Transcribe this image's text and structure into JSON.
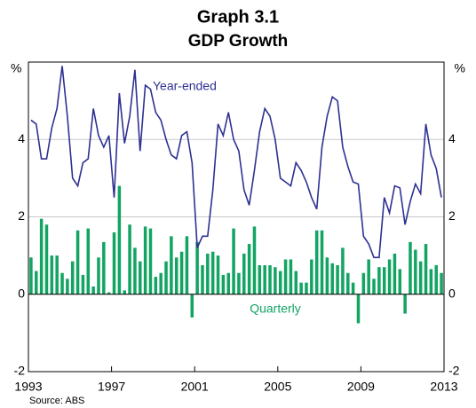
{
  "chart_data": {
    "type": "combo",
    "title": "Graph 3.1",
    "subtitle": "GDP Growth",
    "unit": "%",
    "source": "Source: ABS",
    "xlim": [
      1993,
      2013
    ],
    "xticks": [
      1993,
      1997,
      2001,
      2005,
      2009,
      2013
    ],
    "ylim": [
      -2,
      6
    ],
    "yticks": [
      -2,
      0,
      2,
      4
    ],
    "grid": true,
    "x": [
      1993,
      1993.25,
      1993.5,
      1993.75,
      1994,
      1994.25,
      1994.5,
      1994.75,
      1995,
      1995.25,
      1995.5,
      1995.75,
      1996,
      1996.25,
      1996.5,
      1996.75,
      1997,
      1997.25,
      1997.5,
      1997.75,
      1998,
      1998.25,
      1998.5,
      1998.75,
      1999,
      1999.25,
      1999.5,
      1999.75,
      2000,
      2000.25,
      2000.5,
      2000.75,
      2001,
      2001.25,
      2001.5,
      2001.75,
      2002,
      2002.25,
      2002.5,
      2002.75,
      2003,
      2003.25,
      2003.5,
      2003.75,
      2004,
      2004.25,
      2004.5,
      2004.75,
      2005,
      2005.25,
      2005.5,
      2005.75,
      2006,
      2006.25,
      2006.5,
      2006.75,
      2007,
      2007.25,
      2007.5,
      2007.75,
      2008,
      2008.25,
      2008.5,
      2008.75,
      2009,
      2009.25,
      2009.5,
      2009.75,
      2010,
      2010.25,
      2010.5,
      2010.75,
      2011,
      2011.25,
      2011.5,
      2011.75,
      2012,
      2012.25,
      2012.5,
      2012.75
    ],
    "series": [
      {
        "name": "Year-ended",
        "type": "line",
        "color": "#2e3192",
        "values": [
          4.5,
          4.4,
          3.5,
          3.5,
          4.3,
          4.8,
          5.9,
          4.6,
          3.0,
          2.8,
          3.4,
          3.5,
          4.8,
          4.1,
          3.8,
          4.1,
          2.5,
          5.2,
          3.9,
          4.6,
          5.8,
          3.7,
          5.4,
          5.3,
          4.7,
          4.5,
          4.0,
          3.6,
          3.5,
          4.1,
          4.2,
          3.4,
          1.2,
          1.5,
          1.5,
          2.7,
          4.4,
          4.1,
          4.7,
          4.0,
          3.7,
          2.7,
          2.3,
          3.2,
          4.2,
          4.8,
          4.6,
          4.0,
          3.0,
          2.9,
          2.8,
          3.4,
          3.2,
          2.9,
          2.5,
          2.2,
          3.8,
          4.6,
          5.1,
          5.0,
          3.8,
          3.3,
          2.9,
          2.85,
          1.5,
          1.3,
          0.95,
          0.95,
          2.5,
          2.1,
          2.8,
          2.75,
          1.8,
          2.4,
          2.85,
          2.6,
          4.4,
          3.6,
          3.25,
          2.5
        ]
      },
      {
        "name": "Quarterly",
        "type": "bar",
        "color": "#13a463",
        "values": [
          0.95,
          0.6,
          1.95,
          1.8,
          1.0,
          1.0,
          0.55,
          0.4,
          0.85,
          1.65,
          0.5,
          1.7,
          0.2,
          0.95,
          1.35,
          0.05,
          1.6,
          2.8,
          0.1,
          1.8,
          1.2,
          0.85,
          1.75,
          1.7,
          0.45,
          0.55,
          0.85,
          1.5,
          0.95,
          1.1,
          1.5,
          -0.6,
          1.35,
          0.75,
          1.05,
          1.1,
          1.0,
          0.5,
          0.55,
          1.7,
          0.55,
          1.05,
          1.3,
          1.75,
          0.75,
          0.75,
          0.75,
          0.7,
          0.6,
          0.9,
          0.9,
          0.6,
          0.3,
          0.3,
          0.9,
          1.65,
          1.65,
          0.95,
          0.8,
          0.75,
          1.2,
          0.55,
          0.3,
          -0.75,
          0.55,
          0.9,
          0.4,
          0.7,
          0.7,
          0.9,
          1.05,
          0.65,
          -0.5,
          1.35,
          1.15,
          0.85,
          1.3,
          0.65,
          0.75,
          0.55
        ]
      }
    ]
  }
}
